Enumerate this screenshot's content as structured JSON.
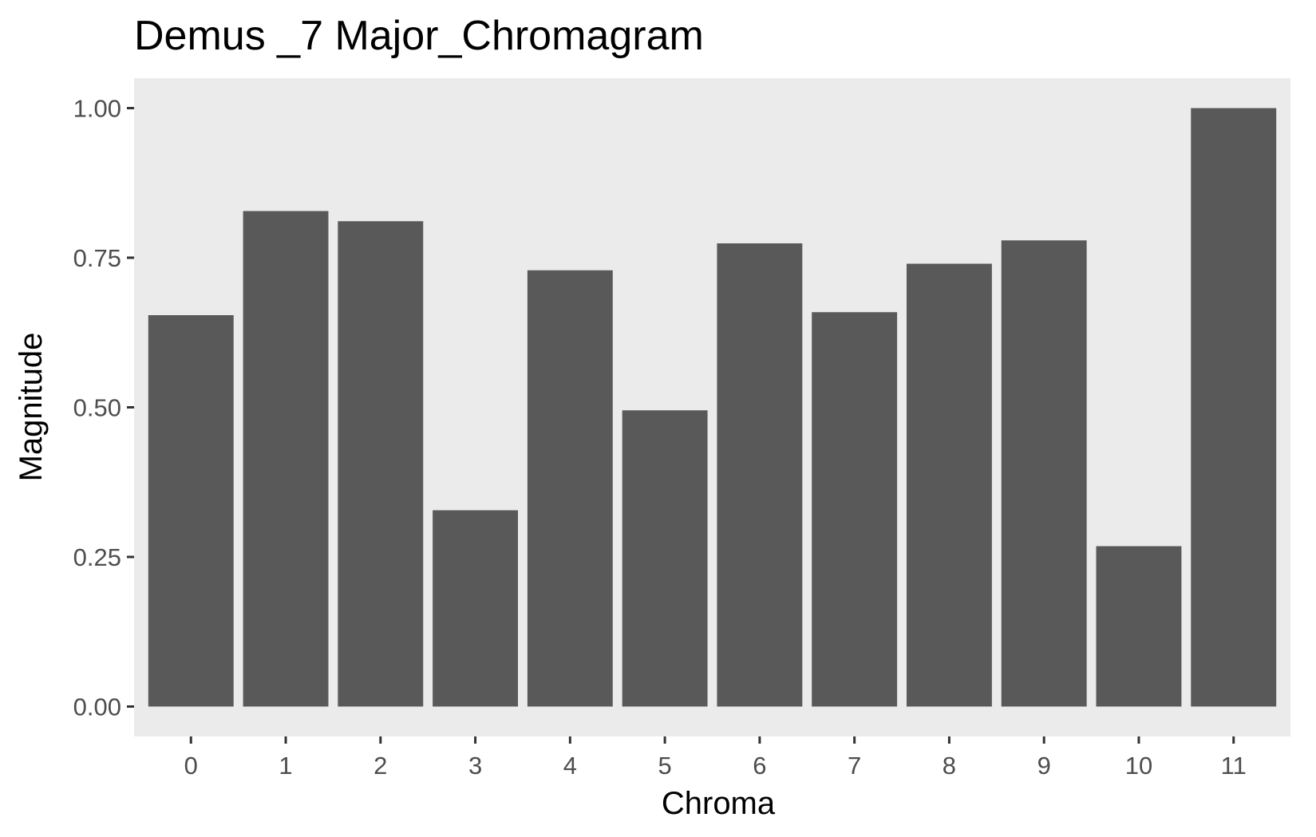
{
  "chart_data": {
    "type": "bar",
    "title": "Demus _7 Major_Chromagram",
    "xlabel": "Chroma",
    "ylabel": "Magnitude",
    "categories": [
      "0",
      "1",
      "2",
      "3",
      "4",
      "5",
      "6",
      "7",
      "8",
      "9",
      "10",
      "11"
    ],
    "values": [
      0.654,
      0.828,
      0.811,
      0.328,
      0.729,
      0.495,
      0.774,
      0.659,
      0.74,
      0.779,
      0.268,
      1.0
    ],
    "ylim": [
      -0.05,
      1.05
    ],
    "yticks": [
      "0.00",
      "0.25",
      "0.50",
      "0.75",
      "1.00"
    ],
    "ytick_values": [
      0,
      0.25,
      0.5,
      0.75,
      1.0
    ],
    "grid": false,
    "legend": "none",
    "colors": {
      "bar": "#595959",
      "panel": "#ebebeb",
      "tick": "#333333",
      "tick_label": "#4d4d4d"
    }
  }
}
